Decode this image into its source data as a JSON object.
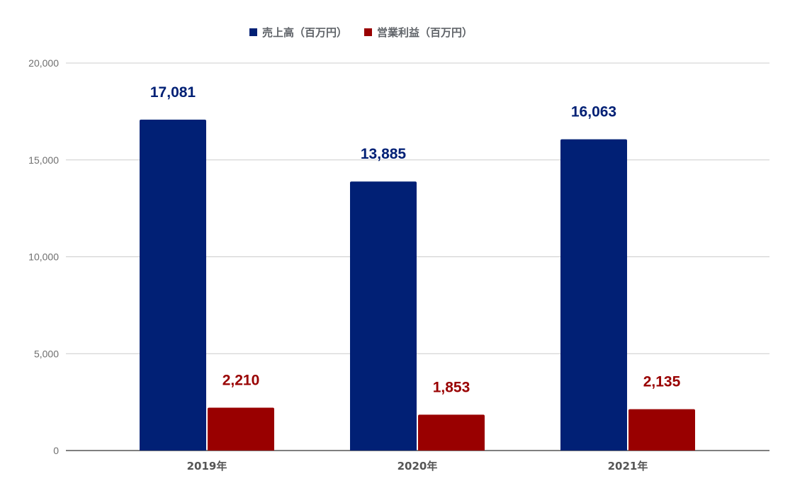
{
  "chart_data": {
    "type": "bar",
    "categories": [
      "2019年",
      "2020年",
      "2021年"
    ],
    "series": [
      {
        "name": "売上高（百万円）",
        "color": "#012075",
        "label_color": "#012075",
        "values": [
          17081,
          13885,
          16063
        ],
        "labels": [
          "17,081",
          "13,885",
          "16,063"
        ]
      },
      {
        "name": "営業利益（百万円）",
        "color": "#990000",
        "label_color": "#990000",
        "values": [
          2210,
          1853,
          2135
        ],
        "labels": [
          "2,210",
          "1,853",
          "2,135"
        ]
      }
    ],
    "ylim": [
      0,
      20000
    ],
    "yticks": [
      0,
      5000,
      10000,
      15000,
      20000
    ],
    "ytick_labels": [
      "0",
      "5,000",
      "10,000",
      "15,000",
      "20,000"
    ],
    "grid": true,
    "legend_position": "top",
    "title": "",
    "xlabel": "",
    "ylabel": ""
  }
}
